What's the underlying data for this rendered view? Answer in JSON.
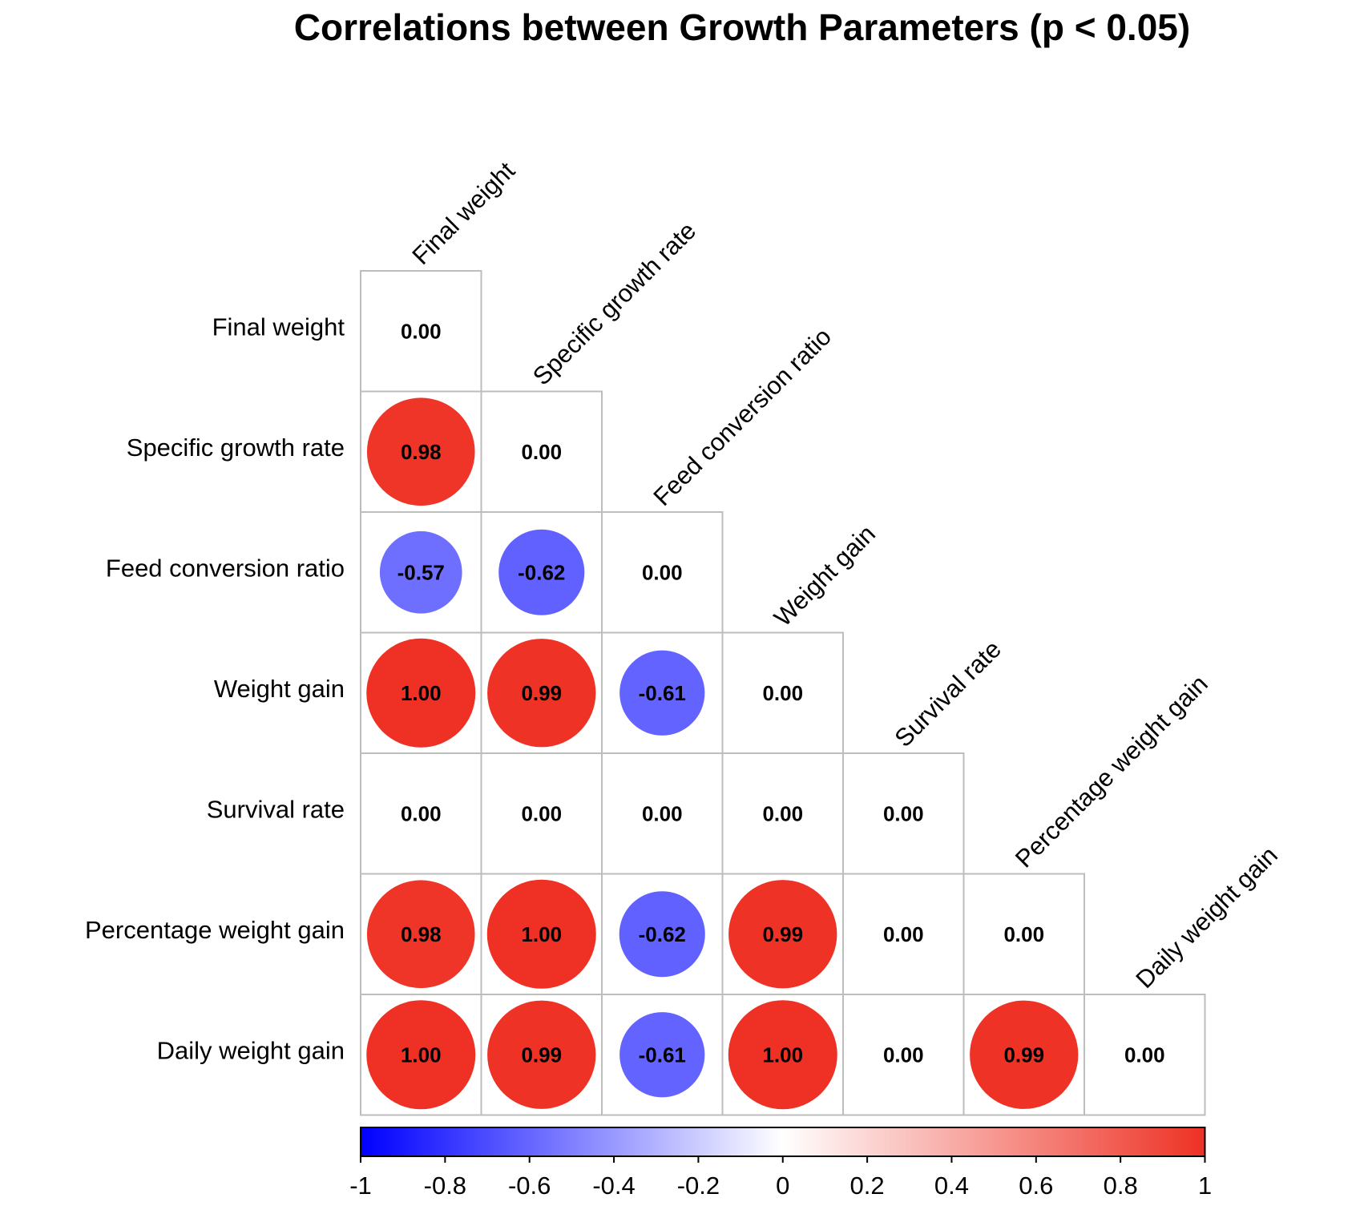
{
  "chart_data": {
    "type": "heatmap",
    "title": "Correlations between Growth Parameters (p < 0.05)",
    "variables": [
      "Final weight",
      "Specific growth rate",
      "Feed conversion ratio",
      "Weight gain",
      "Survival rate",
      "Percentage weight gain",
      "Daily weight gain"
    ],
    "layout": "lower-triangle",
    "matrix": [
      [
        0.0
      ],
      [
        0.98,
        0.0
      ],
      [
        -0.57,
        -0.62,
        0.0
      ],
      [
        1.0,
        0.99,
        -0.61,
        0.0
      ],
      [
        0.0,
        0.0,
        0.0,
        0.0,
        0.0
      ],
      [
        0.98,
        1.0,
        -0.62,
        0.99,
        0.0,
        0.0
      ],
      [
        1.0,
        0.99,
        -0.61,
        1.0,
        0.0,
        0.99,
        0.0
      ]
    ],
    "value_format": "0.00",
    "color_scale": {
      "min": -1,
      "mid": 0,
      "max": 1,
      "low_color": "#0000ff",
      "mid_color": "#ffffff",
      "high_color": "#ee3124"
    },
    "colorbar_ticks": [
      "-1",
      "-0.8",
      "-0.6",
      "-0.4",
      "-0.2",
      "0",
      "0.2",
      "0.4",
      "0.6",
      "0.8",
      "1"
    ],
    "colorbar_placement": "bottom"
  }
}
